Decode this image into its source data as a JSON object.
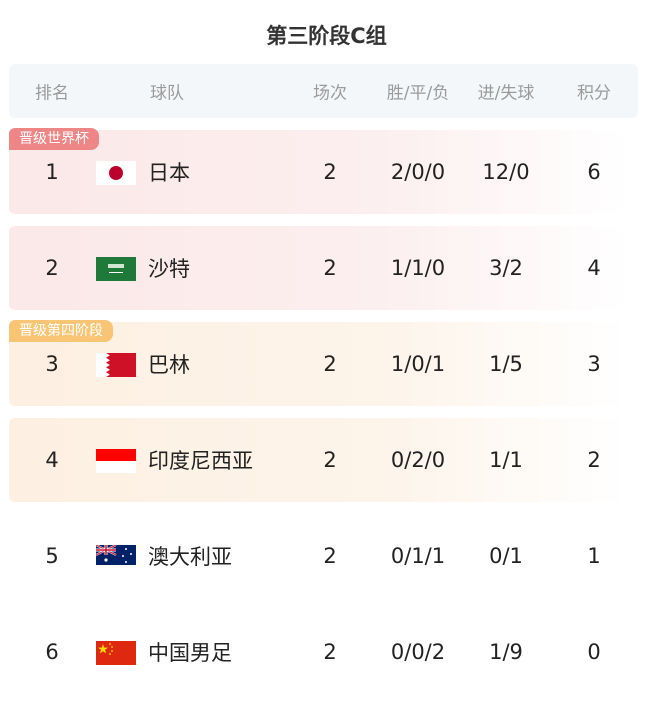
{
  "title": "第三阶段C组",
  "columns": [
    "排名",
    "球队",
    "场次",
    "胜/平/负",
    "进/失球",
    "积分"
  ],
  "badges": {
    "world_cup": "晋级世界杯",
    "fourth_stage": "晋级第四阶段"
  },
  "colors": {
    "qualified": "#ee8686",
    "fourth_stage": "#f8c574"
  },
  "rows": [
    {
      "rank": "1",
      "team": "日本",
      "flag": "japan-flag-icon",
      "played": "2",
      "wdl": "2/0/0",
      "goals": "12/0",
      "points": "6"
    },
    {
      "rank": "2",
      "team": "沙特",
      "flag": "saudi-arabia-flag-icon",
      "played": "2",
      "wdl": "1/1/0",
      "goals": "3/2",
      "points": "4"
    },
    {
      "rank": "3",
      "team": "巴林",
      "flag": "bahrain-flag-icon",
      "played": "2",
      "wdl": "1/0/1",
      "goals": "1/5",
      "points": "3"
    },
    {
      "rank": "4",
      "team": "印度尼西亚",
      "flag": "indonesia-flag-icon",
      "played": "2",
      "wdl": "0/2/0",
      "goals": "1/1",
      "points": "2"
    },
    {
      "rank": "5",
      "team": "澳大利亚",
      "flag": "australia-flag-icon",
      "played": "2",
      "wdl": "0/1/1",
      "goals": "0/1",
      "points": "1"
    },
    {
      "rank": "6",
      "team": "中国男足",
      "flag": "china-flag-icon",
      "played": "2",
      "wdl": "0/0/2",
      "goals": "1/9",
      "points": "0"
    }
  ]
}
